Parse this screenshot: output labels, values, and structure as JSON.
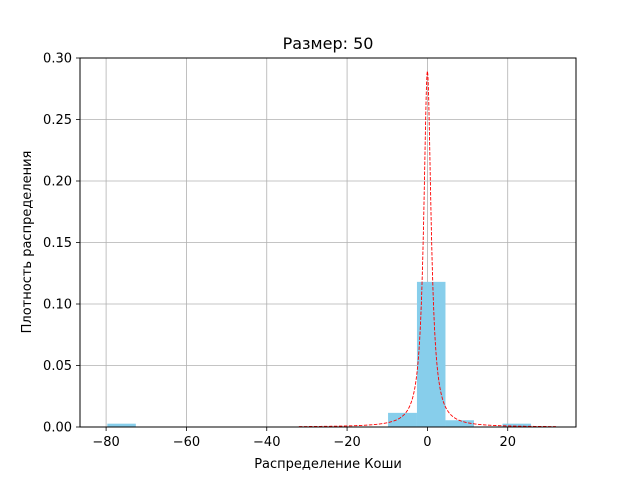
{
  "chart_data": {
    "type": "bar",
    "title": "Размер: 50",
    "xlabel": "Распределение Коши",
    "ylabel": "Плотность распределения",
    "xlim": [
      -86.5,
      37
    ],
    "ylim": [
      0,
      0.3
    ],
    "grid": true,
    "xticks": [
      -80,
      -60,
      -40,
      -20,
      0,
      20
    ],
    "yticks": [
      0.0,
      0.05,
      0.1,
      0.15,
      0.2,
      0.25,
      0.3
    ],
    "xtick_labels": [
      "−80",
      "−60",
      "−40",
      "−20",
      "0",
      "20"
    ],
    "ytick_labels": [
      "0.00",
      "0.05",
      "0.10",
      "0.15",
      "0.20",
      "0.25",
      "0.30"
    ],
    "histogram": {
      "color": "#87ceeb",
      "bins": [
        {
          "x0": -79.7,
          "x1": -72.6,
          "density": 0.0027
        },
        {
          "x0": -9.8,
          "x1": -2.6,
          "density": 0.0115
        },
        {
          "x0": -2.6,
          "x1": 4.5,
          "density": 0.118
        },
        {
          "x0": 4.5,
          "x1": 11.6,
          "density": 0.0055
        },
        {
          "x0": 18.7,
          "x1": 25.8,
          "density": 0.0027
        }
      ]
    },
    "density_curve": {
      "color": "#ff0000",
      "style": "dashed",
      "x_range": [
        -32,
        32
      ],
      "location": 0,
      "scale": 1.1
    }
  }
}
